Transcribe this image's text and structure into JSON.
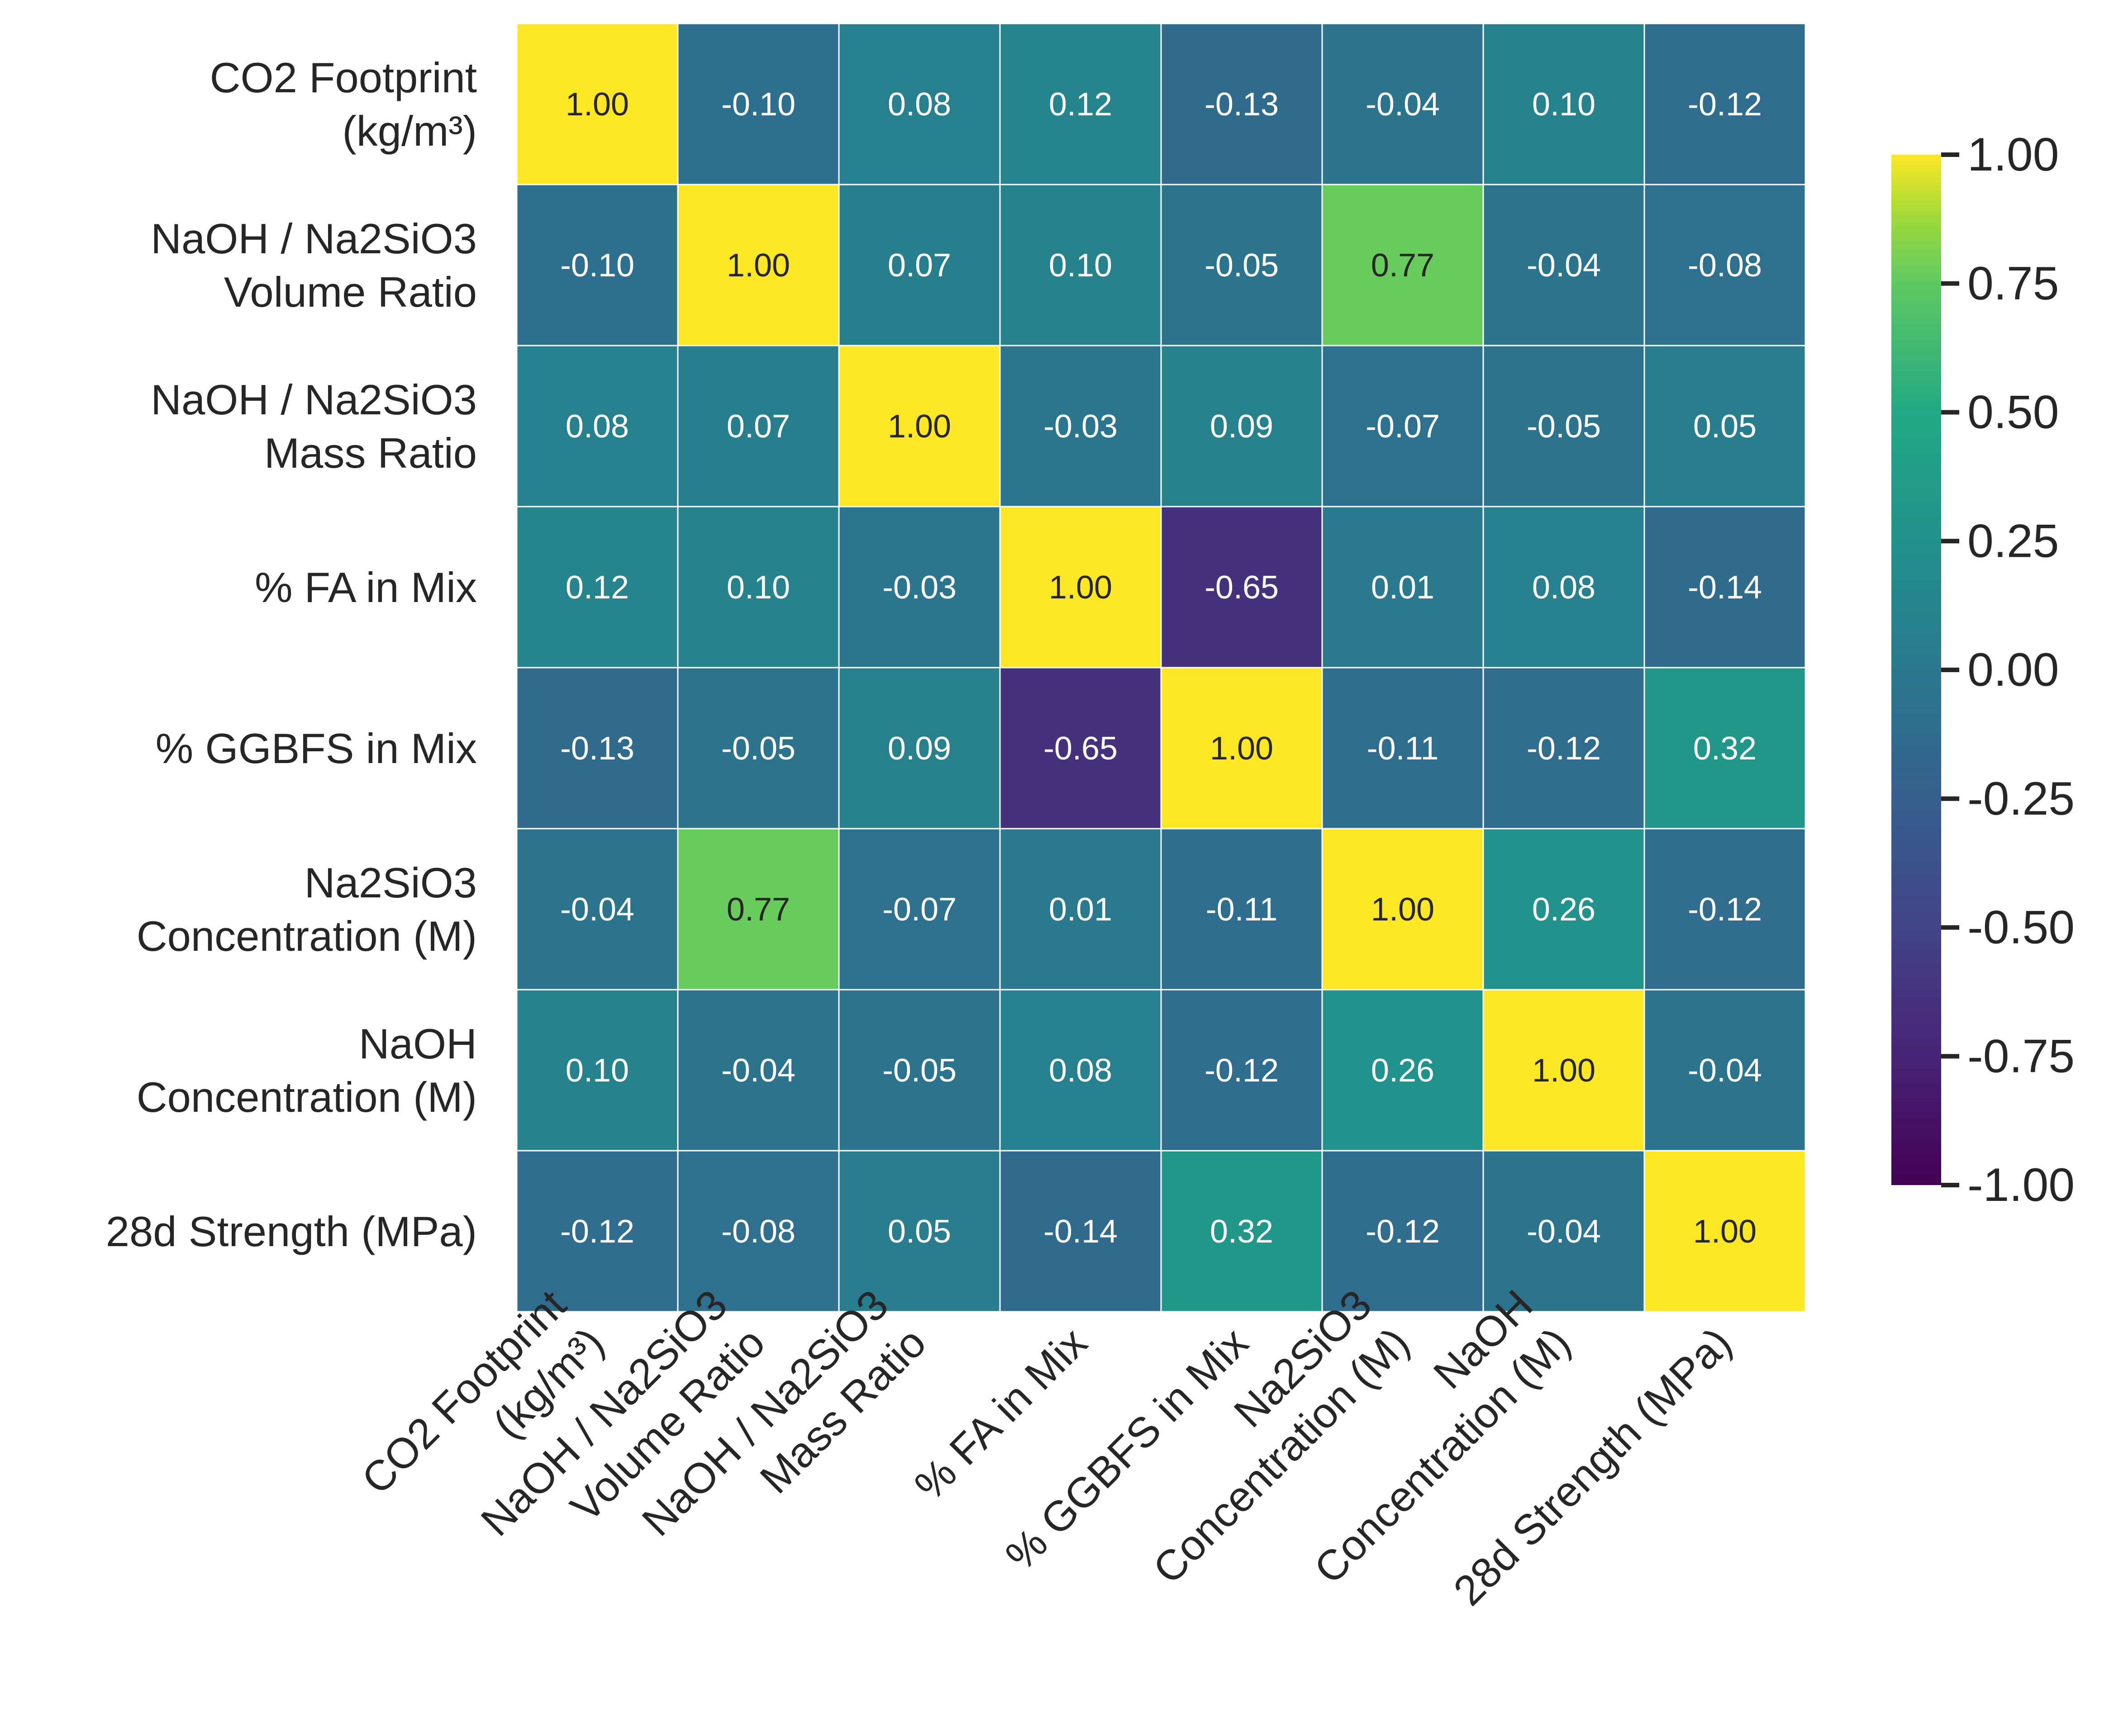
{
  "chart_data": {
    "type": "heatmap",
    "title": "",
    "xlabel": "",
    "ylabel": "",
    "rows": [
      [
        "CO2 Footprint",
        "(kg/m³)"
      ],
      [
        "NaOH / Na2SiO3",
        "Volume Ratio"
      ],
      [
        "NaOH / Na2SiO3",
        "Mass Ratio"
      ],
      [
        "% FA in Mix"
      ],
      [
        "% GGBFS in Mix"
      ],
      [
        "Na2SiO3",
        "Concentration (M)"
      ],
      [
        "NaOH",
        "Concentration (M)"
      ],
      [
        "28d Strength (MPa)"
      ]
    ],
    "columns": [
      [
        "CO2 Footprint",
        "(kg/m³)"
      ],
      [
        "NaOH / Na2SiO3",
        "Volume Ratio"
      ],
      [
        "NaOH / Na2SiO3",
        "Mass Ratio"
      ],
      [
        "% FA in Mix"
      ],
      [
        "% GGBFS in Mix"
      ],
      [
        "Na2SiO3",
        "Concentration (M)"
      ],
      [
        "NaOH",
        "Concentration (M)"
      ],
      [
        "28d Strength (MPa)"
      ]
    ],
    "values": [
      [
        1.0,
        -0.1,
        0.08,
        0.12,
        -0.13,
        -0.04,
        0.1,
        -0.12
      ],
      [
        -0.1,
        1.0,
        0.07,
        0.1,
        -0.05,
        0.77,
        -0.04,
        -0.08
      ],
      [
        0.08,
        0.07,
        1.0,
        -0.03,
        0.09,
        -0.07,
        -0.05,
        0.05
      ],
      [
        0.12,
        0.1,
        -0.03,
        1.0,
        -0.65,
        0.01,
        0.08,
        -0.14
      ],
      [
        -0.13,
        -0.05,
        0.09,
        -0.65,
        1.0,
        -0.11,
        -0.12,
        0.32
      ],
      [
        -0.04,
        0.77,
        -0.07,
        0.01,
        -0.11,
        1.0,
        0.26,
        -0.12
      ],
      [
        0.1,
        -0.04,
        -0.05,
        0.08,
        -0.12,
        0.26,
        1.0,
        -0.04
      ],
      [
        -0.12,
        -0.08,
        0.05,
        -0.14,
        0.32,
        -0.12,
        -0.04,
        1.0
      ]
    ],
    "annotation_format": "0.00",
    "colormap": "viridis",
    "colorbar": {
      "range": [
        -1.0,
        1.0
      ],
      "ticks": [
        1.0,
        0.75,
        0.5,
        0.25,
        0.0,
        -0.25,
        -0.5,
        -0.75,
        -1.0
      ],
      "tick_labels": [
        "1.00",
        "0.75",
        "0.50",
        "0.25",
        "0.00",
        "-0.25",
        "-0.50",
        "-0.75",
        "-1.00"
      ],
      "placement": "right"
    },
    "grid": true,
    "grid_color": "#ffffff",
    "annotation_colors": {
      "light": "#ffffff",
      "dark": "#262626"
    },
    "x_tick_rotation_degrees": 45
  }
}
